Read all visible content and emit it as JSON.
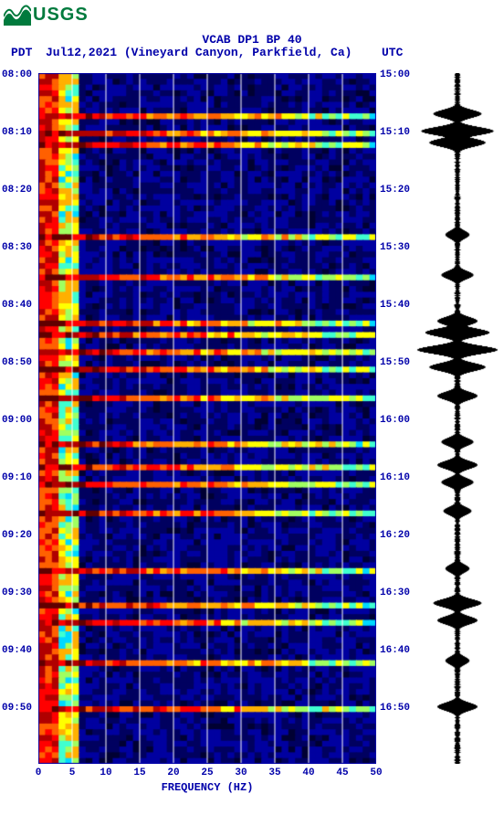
{
  "logo_text": "USGS",
  "title": "VCAB DP1 BP 40",
  "tz_left": "PDT",
  "date_location": "Jul12,2021 (Vineyard Canyon, Parkfield, Ca)",
  "tz_right": "UTC",
  "x_label": "FREQUENCY (HZ)",
  "colors": {
    "text": "#0000aa",
    "logo": "#007a3d",
    "waveform": "#000000",
    "heat": [
      "#000033",
      "#000060",
      "#0000a0",
      "#0000d0",
      "#0020ff",
      "#0060ff",
      "#00a0ff",
      "#00d8ff",
      "#40ffd0",
      "#a0ff60",
      "#ffff00",
      "#ffb000",
      "#ff6000",
      "#ff0000",
      "#b00000",
      "#600000"
    ]
  },
  "left_ticks": [
    "08:00",
    "08:10",
    "08:20",
    "08:30",
    "08:40",
    "08:50",
    "09:00",
    "09:10",
    "09:20",
    "09:30",
    "09:40",
    "09:50"
  ],
  "right_ticks": [
    "15:00",
    "15:10",
    "15:20",
    "15:30",
    "15:40",
    "15:50",
    "16:00",
    "16:10",
    "16:20",
    "16:30",
    "16:40",
    "16:50"
  ],
  "x_ticks": [
    0,
    5,
    10,
    15,
    20,
    25,
    30,
    35,
    40,
    45,
    50
  ],
  "chart": {
    "type": "spectrogram",
    "xlim": [
      0,
      50
    ],
    "time_rows": 120,
    "freq_cols": 50,
    "grid_x": [
      5,
      10,
      15,
      20,
      25,
      30,
      35,
      40,
      45
    ]
  },
  "event_rows": [
    7,
    10,
    12,
    28,
    35,
    43,
    45,
    48,
    51,
    56,
    64,
    68,
    71,
    76,
    86,
    92,
    95,
    102,
    110
  ],
  "waveform_peaks": [
    {
      "t": 7,
      "a": 0.6
    },
    {
      "t": 10,
      "a": 0.9
    },
    {
      "t": 12,
      "a": 0.7
    },
    {
      "t": 28,
      "a": 0.3
    },
    {
      "t": 35,
      "a": 0.4
    },
    {
      "t": 43,
      "a": 0.5
    },
    {
      "t": 45,
      "a": 0.8
    },
    {
      "t": 48,
      "a": 1.0
    },
    {
      "t": 51,
      "a": 0.7
    },
    {
      "t": 56,
      "a": 0.5
    },
    {
      "t": 64,
      "a": 0.4
    },
    {
      "t": 68,
      "a": 0.5
    },
    {
      "t": 71,
      "a": 0.4
    },
    {
      "t": 76,
      "a": 0.35
    },
    {
      "t": 86,
      "a": 0.3
    },
    {
      "t": 92,
      "a": 0.6
    },
    {
      "t": 95,
      "a": 0.5
    },
    {
      "t": 102,
      "a": 0.3
    },
    {
      "t": 110,
      "a": 0.5
    }
  ]
}
